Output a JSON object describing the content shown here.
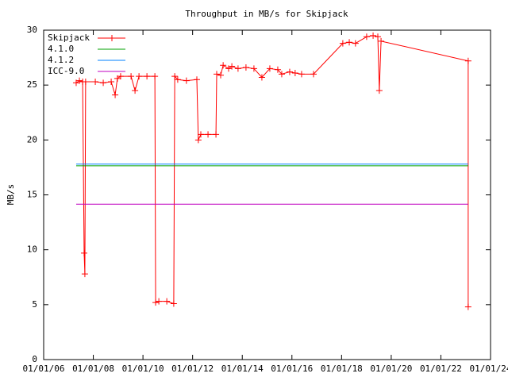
{
  "chart_data": {
    "type": "line",
    "title": "Throughput in MB/s for Skipjack",
    "ylabel": "MB/s",
    "xlim": [
      2006,
      2024
    ],
    "xticks": [
      {
        "value": 2006,
        "label": "01/01/06"
      },
      {
        "value": 2008,
        "label": "01/01/08"
      },
      {
        "value": 2010,
        "label": "01/01/10"
      },
      {
        "value": 2012,
        "label": "01/01/12"
      },
      {
        "value": 2014,
        "label": "01/01/14"
      },
      {
        "value": 2016,
        "label": "01/01/16"
      },
      {
        "value": 2018,
        "label": "01/01/18"
      },
      {
        "value": 2020,
        "label": "01/01/20"
      },
      {
        "value": 2022,
        "label": "01/01/22"
      },
      {
        "value": 2024,
        "label": "01/01/24"
      }
    ],
    "ylim": [
      0,
      30
    ],
    "yticks": [
      0,
      5,
      10,
      15,
      20,
      25,
      30
    ],
    "legend": "top-left",
    "grid": false,
    "series": [
      {
        "name": "Skipjack",
        "color": "#ff0000",
        "markers": true,
        "x": [
          2007.31,
          2007.44,
          2007.57,
          2007.63,
          2007.66,
          2007.69,
          2008.08,
          2008.4,
          2008.72,
          2008.88,
          2008.97,
          2009.1,
          2009.52,
          2009.68,
          2009.84,
          2010.16,
          2010.48,
          2010.51,
          2010.64,
          2010.96,
          2011.24,
          2011.28,
          2011.4,
          2011.75,
          2012.17,
          2012.23,
          2012.33,
          2012.62,
          2012.94,
          2012.97,
          2013.13,
          2013.23,
          2013.45,
          2013.58,
          2013.83,
          2014.15,
          2014.47,
          2014.79,
          2015.11,
          2015.43,
          2015.59,
          2015.91,
          2016.13,
          2016.39,
          2016.87,
          2018.05,
          2018.31,
          2018.56,
          2019.01,
          2019.27,
          2019.46,
          2019.52,
          2019.59,
          2023.1,
          2023.1
        ],
        "values": [
          25.2,
          25.4,
          25.3,
          9.7,
          7.8,
          25.3,
          25.3,
          25.2,
          25.3,
          24.1,
          25.6,
          25.8,
          25.8,
          24.5,
          25.8,
          25.8,
          25.8,
          5.2,
          5.3,
          5.3,
          5.1,
          25.8,
          25.5,
          25.4,
          25.5,
          20.0,
          20.5,
          20.5,
          20.5,
          26.0,
          25.9,
          26.8,
          26.5,
          26.7,
          26.5,
          26.6,
          26.5,
          25.7,
          26.5,
          26.4,
          26.0,
          26.2,
          26.1,
          26.0,
          26.0,
          28.8,
          28.9,
          28.8,
          29.4,
          29.5,
          29.4,
          24.5,
          29.0,
          27.2,
          4.8
        ]
      },
      {
        "name": "4.1.0",
        "color": "#00a000",
        "x": [
          2007.31,
          2023.1
        ],
        "values": [
          17.65,
          17.65
        ]
      },
      {
        "name": "4.1.2",
        "color": "#0080ff",
        "x": [
          2007.31,
          2023.1
        ],
        "values": [
          17.8,
          17.8
        ]
      },
      {
        "name": "ICC-9.0",
        "color": "#c000c0",
        "x": [
          2007.31,
          2023.1
        ],
        "values": [
          14.15,
          14.15
        ]
      }
    ]
  }
}
